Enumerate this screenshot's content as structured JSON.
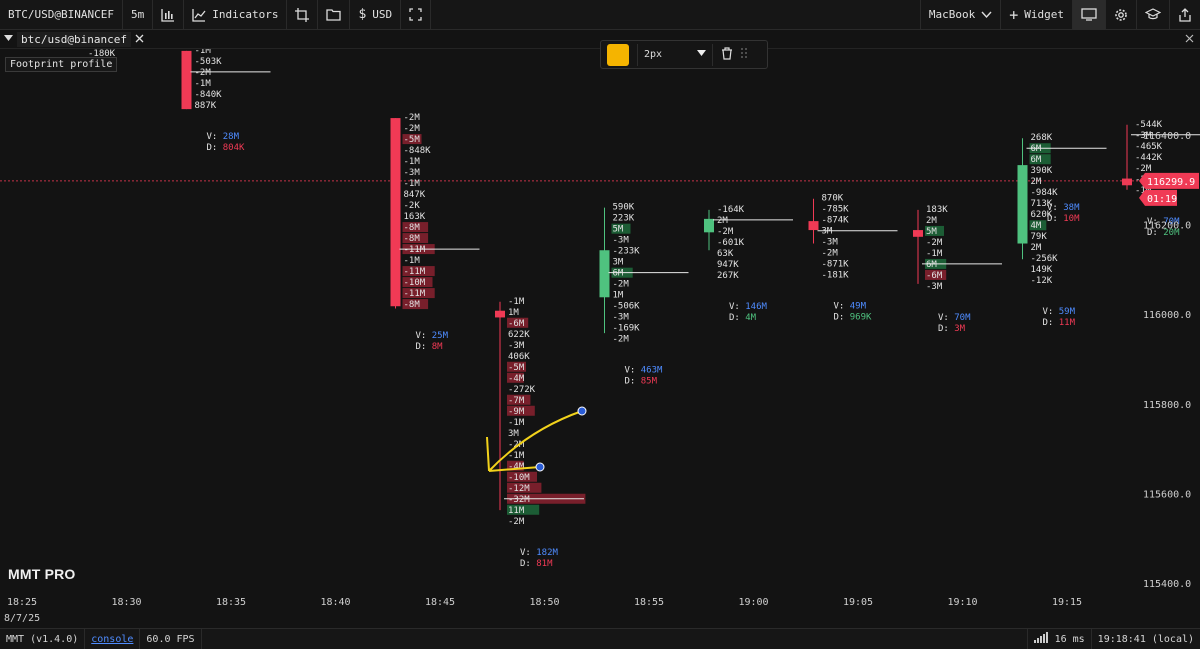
{
  "toolbar": {
    "symbol": "BTC/USD@BINANCEF",
    "timeframe": "5m",
    "indicators_label": "Indicators",
    "currency_label": "USD",
    "workspace": "MacBook",
    "widget_label": "Widget"
  },
  "pane": {
    "tab_title": "btc/usd@binancef",
    "tooltip": "Footprint profile",
    "overlap_label": "-180K"
  },
  "drawing_tools": {
    "stroke_width": "2px",
    "color": "#f5b400"
  },
  "chart_data": {
    "type": "footprint-candlestick",
    "up_color": "#4fc27f",
    "down_color": "#f03a55",
    "volume_color": "#4f8cff",
    "delta_positive_color": "#4fc27f",
    "delta_negative_color": "#f03a55",
    "price_axis": {
      "ticks": [
        "116400.0",
        "116200.0",
        "116000.0",
        "115800.0",
        "115600.0",
        "115400.0"
      ],
      "range": [
        115400,
        116400
      ]
    },
    "time_axis": {
      "ticks": [
        "18:25",
        "18:30",
        "18:35",
        "18:40",
        "18:45",
        "18:50",
        "18:55",
        "19:00",
        "19:05",
        "19:10",
        "19:15"
      ]
    },
    "last_price": {
      "price": "116299.9",
      "countdown": "01:19",
      "color": "#f03a55"
    },
    "date": "8/7/25",
    "candles": [
      {
        "time": "18:30",
        "dir": "down",
        "open": 116590,
        "close": 116460,
        "high": 116590,
        "low": 116460,
        "prices": [
          "-1M",
          "-503K",
          "-2M",
          "-1M",
          "-840K",
          "887K"
        ],
        "volume": "28M",
        "delta": "804K",
        "delta_sign": "neg"
      },
      {
        "time": "18:40",
        "dir": "down",
        "open": 116440,
        "close": 116020,
        "high": 116440,
        "low": 116015,
        "prices": [
          "-2M",
          "-2M",
          "-5M",
          "-848K",
          "-1M",
          "-3M",
          "-1M",
          "847K",
          "-2K",
          "163K",
          "-8M",
          "-8M",
          "-11M",
          "-1M",
          "-11M",
          "-10M",
          "-11M",
          "-8M"
        ],
        "volume": "25M",
        "delta": "8M",
        "delta_sign": "neg"
      },
      {
        "time": "18:45",
        "dir": "down",
        "open": 116010,
        "close": 115995,
        "high": 116030,
        "low": 115565,
        "prices": [
          "-1M",
          "1M",
          "-6M",
          "622K",
          "-3M",
          "406K",
          "-5M",
          "-4M",
          "-272K",
          "-7M",
          "-9M",
          "-1M",
          "3M",
          "-2M",
          "-1M",
          "-4M",
          "-10M",
          "-12M",
          "-32M",
          "11M",
          "-2M"
        ],
        "volume": "182M",
        "delta": "81M",
        "delta_sign": "neg"
      },
      {
        "time": "18:50",
        "dir": "up",
        "open": 116040,
        "close": 116145,
        "high": 116240,
        "low": 115960,
        "prices": [
          "590K",
          "223K",
          "5M",
          "-3M",
          "-233K",
          "3M",
          "6M",
          "-2M",
          "1M",
          "-506K",
          "-3M",
          "-169K",
          "-2M"
        ],
        "volume": "463M",
        "delta": "85M",
        "delta_sign": "neg"
      },
      {
        "time": "18:55",
        "dir": "up",
        "open": 116185,
        "close": 116215,
        "high": 116235,
        "low": 116145,
        "prices": [
          "-164K",
          "2M",
          "-2M",
          "-601K",
          "63K",
          "947K",
          "267K"
        ],
        "volume": "146M",
        "delta": "4M",
        "delta_sign": "pos"
      },
      {
        "time": "19:00",
        "dir": "down",
        "open": 116210,
        "close": 116190,
        "high": 116260,
        "low": 116160,
        "prices": [
          "870K",
          "-785K",
          "-874K",
          "3M",
          "-3M",
          "-2M",
          "-871K",
          "-181K"
        ],
        "volume": "49M",
        "delta": "969K",
        "delta_sign": "pos"
      },
      {
        "time": "19:05",
        "dir": "down",
        "open": 116190,
        "close": 116175,
        "high": 116235,
        "low": 116070,
        "prices": [
          "183K",
          "2M",
          "5M",
          "-2M",
          "-1M",
          "6M",
          "-6M",
          "-3M"
        ],
        "volume": "70M",
        "delta": "3M",
        "delta_sign": "neg"
      },
      {
        "time": "19:10",
        "dir": "up",
        "open": 116160,
        "close": 116335,
        "high": 116395,
        "low": 116125,
        "prices": [
          "268K",
          "6M",
          "6M",
          "390K",
          "2M",
          "-984K",
          "713K",
          "620K",
          "4M",
          "79K",
          "2M",
          "-256K",
          "149K",
          "-12K"
        ],
        "volume": "59M",
        "delta": "11M",
        "delta_sign": "neg"
      },
      {
        "time": "19:15",
        "dir": "down",
        "open": 116305,
        "close": 116290,
        "high": 116425,
        "low": 116280,
        "prices": [
          "-544K",
          "-3M",
          "-465K",
          "-442K",
          "-2M",
          "-2M",
          "-1M"
        ],
        "volume": "70M",
        "delta": "20M",
        "delta_sign": "pos"
      }
    ],
    "extra_stats": [
      {
        "volume": "38M",
        "delta": "10M",
        "delta_sign": "neg"
      }
    ]
  },
  "brand": "MMT PRO",
  "status": {
    "version": "MMT (v1.4.0)",
    "console_label": "console",
    "fps": "60.0 FPS",
    "latency": "16 ms",
    "clock": "19:18:41 (local)"
  }
}
